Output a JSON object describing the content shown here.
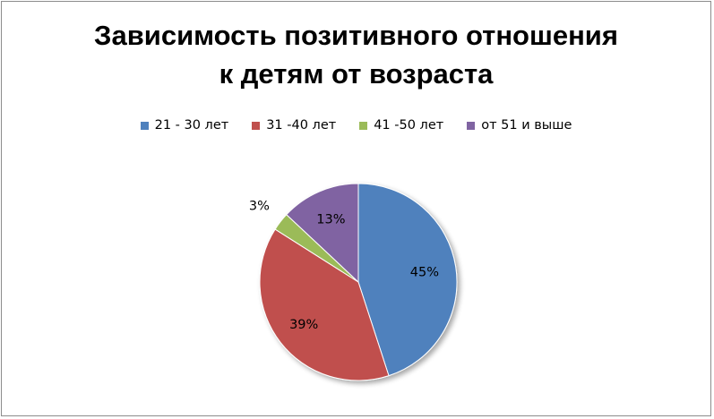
{
  "chart_data": {
    "type": "pie",
    "title_lines": [
      "Зависимость позитивного отношения",
      "к детям от возраста"
    ],
    "categories": [
      "21 - 30 лет",
      "31 -40 лет",
      "41 -50 лет",
      "от 51 и выше"
    ],
    "values": [
      45,
      39,
      3,
      13
    ],
    "labels": [
      "45%",
      "39%",
      "3%",
      "13%"
    ],
    "colors": [
      "#4f81bd",
      "#c0504d",
      "#9bbb59",
      "#8064a2"
    ],
    "legend_position": "top",
    "start_angle_deg": 0,
    "direction": "clockwise"
  }
}
